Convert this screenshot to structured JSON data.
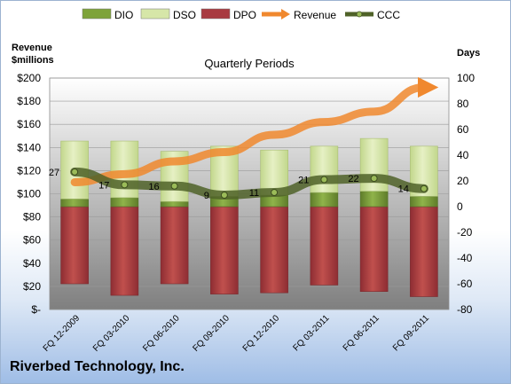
{
  "company_name": "Riverbed Technology, Inc.",
  "colors": {
    "dio": "#7ea33a",
    "dso": "#d6e6a8",
    "dpo": "#a83a40",
    "revenue": "#f0882e",
    "ccc": "#4f6228"
  },
  "chart_data": {
    "type": "bar",
    "title": "Quarterly Periods",
    "y_left_label": "Revenue\n$millions",
    "y_right_label": "Days",
    "categories": [
      "FQ 12-2009",
      "FQ 03-2010",
      "FQ 06-2010",
      "FQ 09-2010",
      "FQ 12-2010",
      "FQ 03-2011",
      "FQ 06-2011",
      "FQ 09-2011"
    ],
    "left_axis": {
      "min": 0,
      "max": 200,
      "step": 20,
      "ticks": [
        "$-",
        "$20",
        "$40",
        "$60",
        "$80",
        "$100",
        "$120",
        "$140",
        "$160",
        "$180",
        "$200"
      ]
    },
    "right_axis": {
      "min": -80,
      "max": 100,
      "step": 20,
      "ticks": [
        "-80",
        "-60",
        "-40",
        "-20",
        "0",
        "20",
        "40",
        "60",
        "80",
        "100"
      ]
    },
    "legend": [
      "DIO",
      "DSO",
      "DPO",
      "Revenue",
      "CCC"
    ],
    "series": [
      {
        "name": "DIO",
        "axis": "days",
        "values": [
          6,
          7,
          4,
          8,
          9,
          11,
          12,
          8
        ]
      },
      {
        "name": "DSO",
        "axis": "days",
        "values": [
          45,
          44,
          39,
          39,
          35,
          36,
          41,
          39
        ]
      },
      {
        "name": "DPO",
        "axis": "days",
        "values": [
          -60,
          -69,
          -60,
          -68,
          -67,
          -61,
          -66,
          -70
        ]
      },
      {
        "name": "Revenue",
        "axis": "revenue",
        "values": [
          110,
          117,
          128,
          136,
          151,
          162,
          171,
          192
        ]
      },
      {
        "name": "CCC",
        "axis": "days",
        "values": [
          27,
          17,
          16,
          9,
          11,
          21,
          22,
          14
        ]
      }
    ],
    "ccc_labels": [
      "27",
      "17",
      "16",
      "9",
      "11",
      "21",
      "22",
      "14"
    ]
  }
}
